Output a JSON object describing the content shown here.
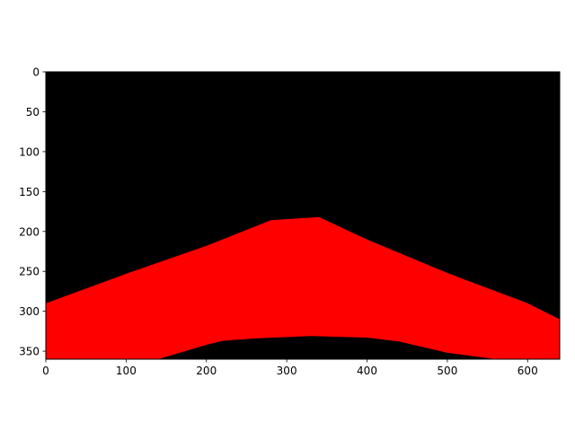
{
  "chart_data": {
    "type": "heatmap",
    "title": "",
    "xlabel": "",
    "ylabel": "",
    "xlim": [
      0,
      640
    ],
    "ylim": [
      360,
      0
    ],
    "y_inverted": true,
    "grid": false,
    "x_ticks": [
      "0",
      "100",
      "200",
      "300",
      "400",
      "500",
      "600"
    ],
    "y_ticks": [
      "0",
      "50",
      "100",
      "150",
      "200",
      "250",
      "300",
      "350"
    ],
    "x_tick_values": [
      0,
      100,
      200,
      300,
      400,
      500,
      600
    ],
    "y_tick_values": [
      0,
      50,
      100,
      150,
      200,
      250,
      300,
      350
    ],
    "colors": {
      "background": "#000000",
      "mask": "#ff0000"
    },
    "mask_region": {
      "upper_boundary": [
        [
          0,
          290
        ],
        [
          100,
          253
        ],
        [
          200,
          218
        ],
        [
          280,
          186
        ],
        [
          340,
          182
        ],
        [
          400,
          210
        ],
        [
          500,
          252
        ],
        [
          600,
          290
        ],
        [
          640,
          310
        ]
      ],
      "lower_boundary": [
        [
          640,
          360
        ],
        [
          560,
          360
        ],
        [
          500,
          352
        ],
        [
          440,
          338
        ],
        [
          400,
          333
        ],
        [
          330,
          331
        ],
        [
          260,
          334
        ],
        [
          220,
          337
        ],
        [
          200,
          342
        ],
        [
          140,
          360
        ],
        [
          0,
          360
        ]
      ]
    }
  }
}
